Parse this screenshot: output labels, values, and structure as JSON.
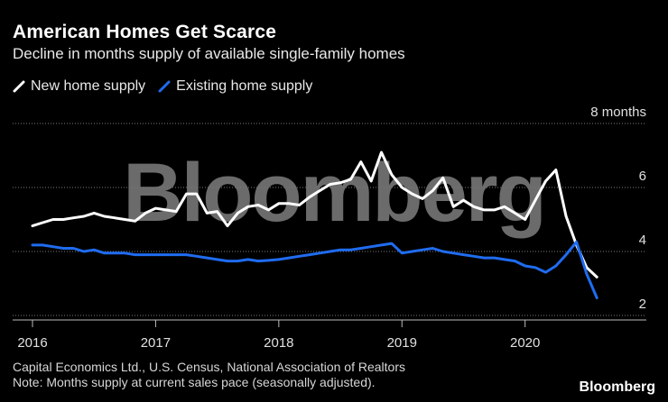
{
  "title": "American Homes Get Scarce",
  "subtitle": "Decline in months supply of available single-family homes",
  "legend": [
    {
      "label": "New home supply",
      "color": "#ffffff"
    },
    {
      "label": "Existing home supply",
      "color": "#1f6cf0"
    }
  ],
  "watermark": "Bloomberg",
  "footer": {
    "source": "Capital Economics Ltd., U.S. Census, National Association of Realtors",
    "note": "Note: Months supply at current sales pace (seasonally adjusted)."
  },
  "brand": "Bloomberg",
  "chart_data": {
    "type": "line",
    "title": "American Homes Get Scarce",
    "xlabel": "",
    "ylabel": "months",
    "ylim": [
      2,
      8
    ],
    "xlim": [
      2016.0,
      2020.75
    ],
    "y_ticks": [
      {
        "value": 8,
        "label": "8 months"
      },
      {
        "value": 6,
        "label": "6"
      },
      {
        "value": 4,
        "label": "4"
      },
      {
        "value": 2,
        "label": "2"
      }
    ],
    "x_ticks": [
      {
        "value": 2016.0,
        "label": "2016"
      },
      {
        "value": 2017.0,
        "label": "2017"
      },
      {
        "value": 2018.0,
        "label": "2018"
      },
      {
        "value": 2019.0,
        "label": "2019"
      },
      {
        "value": 2020.0,
        "label": "2020"
      }
    ],
    "series": [
      {
        "name": "New home supply",
        "color": "#ffffff",
        "x": [
          2016.0,
          2016.083,
          2016.167,
          2016.25,
          2016.333,
          2016.417,
          2016.5,
          2016.583,
          2016.667,
          2016.75,
          2016.833,
          2016.917,
          2017.0,
          2017.083,
          2017.167,
          2017.25,
          2017.333,
          2017.417,
          2017.5,
          2017.583,
          2017.667,
          2017.75,
          2017.833,
          2017.917,
          2018.0,
          2018.083,
          2018.167,
          2018.25,
          2018.333,
          2018.417,
          2018.5,
          2018.583,
          2018.667,
          2018.75,
          2018.833,
          2018.917,
          2019.0,
          2019.083,
          2019.167,
          2019.25,
          2019.333,
          2019.417,
          2019.5,
          2019.583,
          2019.667,
          2019.75,
          2019.833,
          2019.917,
          2020.0,
          2020.083,
          2020.167,
          2020.25,
          2020.333,
          2020.417,
          2020.5,
          2020.583
        ],
        "values": [
          4.8,
          4.9,
          5.0,
          5.0,
          5.05,
          5.1,
          5.2,
          5.1,
          5.05,
          5.0,
          4.95,
          5.2,
          5.35,
          5.3,
          5.25,
          5.8,
          5.8,
          5.2,
          5.25,
          4.8,
          5.2,
          5.4,
          5.45,
          5.3,
          5.5,
          5.5,
          5.45,
          5.7,
          5.9,
          6.1,
          6.15,
          6.25,
          6.8,
          6.2,
          7.1,
          6.4,
          6.0,
          5.8,
          5.65,
          5.9,
          6.3,
          5.4,
          5.6,
          5.4,
          5.3,
          5.3,
          5.4,
          5.2,
          5.0,
          5.6,
          6.2,
          6.55,
          5.1,
          4.2,
          3.5,
          3.2
        ]
      },
      {
        "name": "Existing home supply",
        "color": "#1f6cf0",
        "x": [
          2016.0,
          2016.083,
          2016.167,
          2016.25,
          2016.333,
          2016.417,
          2016.5,
          2016.583,
          2016.667,
          2016.75,
          2016.833,
          2016.917,
          2017.0,
          2017.083,
          2017.167,
          2017.25,
          2017.333,
          2017.417,
          2017.5,
          2017.583,
          2017.667,
          2017.75,
          2017.833,
          2017.917,
          2018.0,
          2018.083,
          2018.167,
          2018.25,
          2018.333,
          2018.417,
          2018.5,
          2018.583,
          2018.667,
          2018.75,
          2018.833,
          2018.917,
          2019.0,
          2019.083,
          2019.167,
          2019.25,
          2019.333,
          2019.417,
          2019.5,
          2019.583,
          2019.667,
          2019.75,
          2019.833,
          2019.917,
          2020.0,
          2020.083,
          2020.167,
          2020.25,
          2020.333,
          2020.417,
          2020.5,
          2020.583
        ],
        "values": [
          4.2,
          4.2,
          4.15,
          4.1,
          4.1,
          4.0,
          4.05,
          3.95,
          3.95,
          3.95,
          3.9,
          3.9,
          3.9,
          3.9,
          3.9,
          3.9,
          3.85,
          3.8,
          3.75,
          3.7,
          3.7,
          3.75,
          3.7,
          3.72,
          3.75,
          3.8,
          3.85,
          3.9,
          3.95,
          4.0,
          4.05,
          4.05,
          4.1,
          4.15,
          4.2,
          4.25,
          3.95,
          4.0,
          4.05,
          4.1,
          4.0,
          3.95,
          3.9,
          3.85,
          3.8,
          3.8,
          3.75,
          3.7,
          3.55,
          3.5,
          3.35,
          3.55,
          3.9,
          4.3,
          3.3,
          2.55
        ]
      }
    ]
  }
}
